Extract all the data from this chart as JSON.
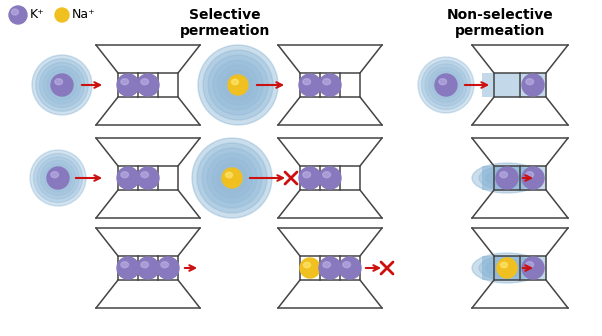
{
  "title_selective": "Selective\npermeation",
  "title_nonselective": "Non-selective\npermeation",
  "legend_k": "K⁺",
  "legend_na": "Na⁺",
  "k_color": "#8878BE",
  "na_color": "#F0C020",
  "halo_color": "#7aaad0",
  "arrow_color": "#CC1010",
  "bg_color": "#FFFFFF",
  "title_fontsize": 10,
  "legend_fontsize": 9
}
